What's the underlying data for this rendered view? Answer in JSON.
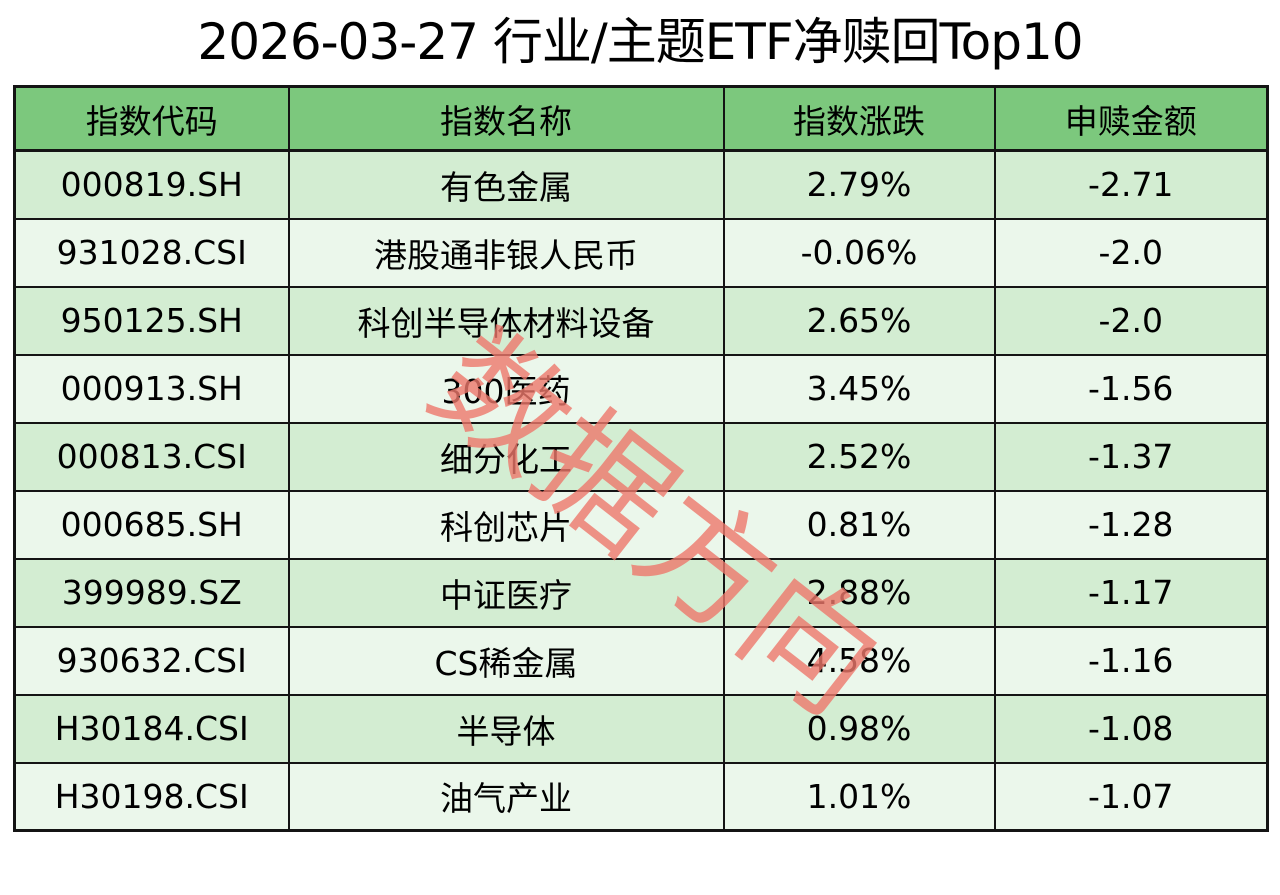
{
  "title": "2026-03-27 行业/主题ETF净赎回Top10",
  "watermark": "数据方向",
  "colors": {
    "header_bg": "#7CC87D",
    "row_odd_bg": "#D3EDD2",
    "row_even_bg": "#EBF7EB",
    "border": "#141414",
    "watermark": "#EE786C",
    "text": "#000000"
  },
  "chart_data": {
    "type": "table",
    "title": "2026-03-27 行业/主题ETF净赎回Top10",
    "columns": [
      "指数代码",
      "指数名称",
      "指数涨跌",
      "申赎金额"
    ],
    "rows": [
      [
        "000819.SH",
        "有色金属",
        "2.79%",
        "-2.71"
      ],
      [
        "931028.CSI",
        "港股通非银人民币",
        "-0.06%",
        "-2.0"
      ],
      [
        "950125.SH",
        "科创半导体材料设备",
        "2.65%",
        "-2.0"
      ],
      [
        "000913.SH",
        "300医药",
        "3.45%",
        "-1.56"
      ],
      [
        "000813.CSI",
        "细分化工",
        "2.52%",
        "-1.37"
      ],
      [
        "000685.SH",
        "科创芯片",
        "0.81%",
        "-1.28"
      ],
      [
        "399989.SZ",
        "中证医疗",
        "2.88%",
        "-1.17"
      ],
      [
        "930632.CSI",
        "CS稀金属",
        "4.58%",
        "-1.16"
      ],
      [
        "H30184.CSI",
        "半导体",
        "0.98%",
        "-1.08"
      ],
      [
        "H30198.CSI",
        "油气产业",
        "1.01%",
        "-1.07"
      ]
    ]
  }
}
